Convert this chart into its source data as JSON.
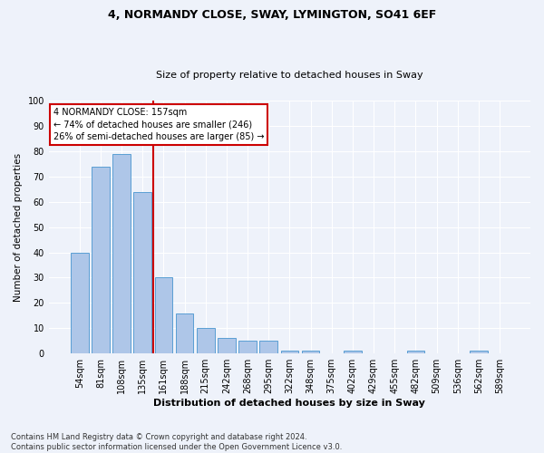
{
  "title1": "4, NORMANDY CLOSE, SWAY, LYMINGTON, SO41 6EF",
  "title2": "Size of property relative to detached houses in Sway",
  "xlabel": "Distribution of detached houses by size in Sway",
  "ylabel": "Number of detached properties",
  "footnote": "Contains HM Land Registry data © Crown copyright and database right 2024.\nContains public sector information licensed under the Open Government Licence v3.0.",
  "bin_labels": [
    "54sqm",
    "81sqm",
    "108sqm",
    "135sqm",
    "161sqm",
    "188sqm",
    "215sqm",
    "242sqm",
    "268sqm",
    "295sqm",
    "322sqm",
    "348sqm",
    "375sqm",
    "402sqm",
    "429sqm",
    "455sqm",
    "482sqm",
    "509sqm",
    "536sqm",
    "562sqm",
    "589sqm"
  ],
  "bar_values": [
    40,
    74,
    79,
    64,
    30,
    16,
    10,
    6,
    5,
    5,
    1,
    1,
    0,
    1,
    0,
    0,
    1,
    0,
    0,
    1,
    0
  ],
  "bar_color": "#aec6e8",
  "bar_edge_color": "#5a9fd4",
  "vline_pos": 3.5,
  "vline_color": "#cc0000",
  "annotation_text": "4 NORMANDY CLOSE: 157sqm\n← 74% of detached houses are smaller (246)\n26% of semi-detached houses are larger (85) →",
  "annotation_box_color": "#ffffff",
  "annotation_box_edge": "#cc0000",
  "ylim": [
    0,
    100
  ],
  "yticks": [
    0,
    10,
    20,
    30,
    40,
    50,
    60,
    70,
    80,
    90,
    100
  ],
  "bg_color": "#eef2fa",
  "grid_color": "#ffffff",
  "title1_fontsize": 9,
  "title2_fontsize": 8,
  "xlabel_fontsize": 8,
  "ylabel_fontsize": 7.5,
  "tick_fontsize": 7,
  "annotation_fontsize": 7,
  "footnote_fontsize": 6
}
